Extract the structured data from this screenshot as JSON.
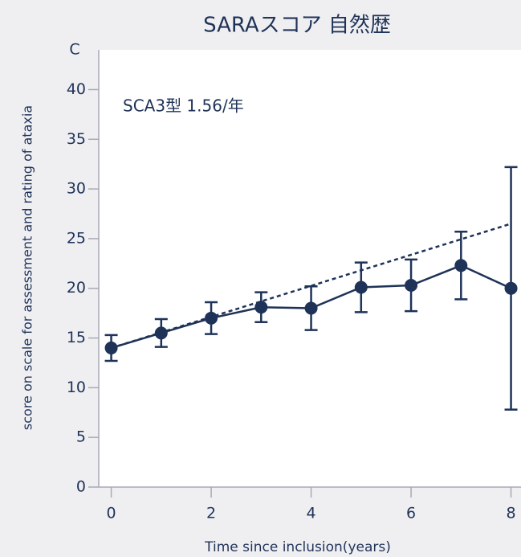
{
  "chart_data": {
    "type": "line",
    "title": "SARAスコア 自然歴",
    "panel_label": "C",
    "annotation": "SCA3型  1.56/年",
    "xlabel": "Time since inclusion(years)",
    "ylabel": "score on scale for assessment and rating of ataxia",
    "xlim": [
      -0.25,
      8.2
    ],
    "ylim": [
      0,
      44
    ],
    "xticks": [
      0,
      2,
      4,
      6,
      8
    ],
    "yticks": [
      0,
      5,
      10,
      15,
      20,
      25,
      30,
      35,
      40
    ],
    "color": "#1f3358",
    "series": [
      {
        "x": [
          0,
          1,
          2,
          3,
          4,
          5,
          6,
          7,
          8
        ],
        "values": [
          14.0,
          15.5,
          17.0,
          18.1,
          18.0,
          20.1,
          20.3,
          22.3,
          20.0
        ],
        "errors": [
          1.3,
          1.4,
          1.6,
          1.5,
          2.2,
          2.5,
          2.6,
          3.4,
          12.2
        ],
        "style": "solid"
      },
      {
        "x": [
          0,
          8
        ],
        "values": [
          14.0,
          26.5
        ],
        "style": "dashed"
      }
    ]
  }
}
